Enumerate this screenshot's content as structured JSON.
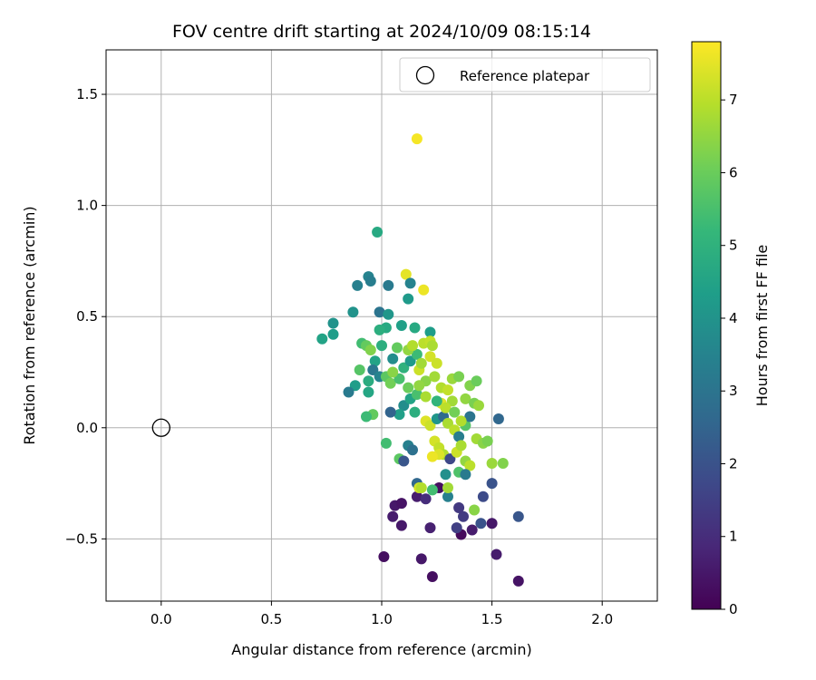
{
  "chart_data": {
    "type": "scatter",
    "title": "FOV centre drift starting at 2024/10/09 08:15:14",
    "xlabel": "Angular distance from reference (arcmin)",
    "ylabel": "Rotation from reference (arcmin)",
    "xlim": [
      -0.25,
      2.25
    ],
    "ylim": [
      -0.78,
      1.7
    ],
    "xticks": [
      0.0,
      0.5,
      1.0,
      1.5,
      2.0
    ],
    "xtick_labels": [
      "0.0",
      "0.5",
      "1.0",
      "1.5",
      "2.0"
    ],
    "yticks": [
      -0.5,
      0.0,
      0.5,
      1.0,
      1.5
    ],
    "ytick_labels": [
      "−0.5",
      "0.0",
      "0.5",
      "1.0",
      "1.5"
    ],
    "grid": true,
    "legend": {
      "position": "top-right",
      "entries": [
        "Reference platepar"
      ]
    },
    "reference_point": {
      "x": 0.0,
      "y": 0.0,
      "marker": "open-circle",
      "color": "#000000"
    },
    "colorbar": {
      "label": "Hours from first FF file",
      "colormap": "viridis",
      "range": [
        0,
        7.8
      ],
      "ticks": [
        0,
        1,
        2,
        3,
        4,
        5,
        6,
        7
      ],
      "tick_labels": [
        "0",
        "1",
        "2",
        "3",
        "4",
        "5",
        "6",
        "7"
      ]
    },
    "series": [
      {
        "name": "drift",
        "points": [
          {
            "x": 1.16,
            "y": 1.3,
            "t": 7.7
          },
          {
            "x": 1.19,
            "y": 0.62,
            "t": 7.6
          },
          {
            "x": 1.11,
            "y": 0.69,
            "t": 7.5
          },
          {
            "x": 1.27,
            "y": 0.11,
            "t": 7.4
          },
          {
            "x": 1.62,
            "y": -0.69,
            "t": 0.4
          },
          {
            "x": 1.23,
            "y": -0.67,
            "t": 0.3
          },
          {
            "x": 1.01,
            "y": -0.58,
            "t": 0.3
          },
          {
            "x": 1.18,
            "y": -0.59,
            "t": 0.5
          },
          {
            "x": 1.52,
            "y": -0.57,
            "t": 0.6
          },
          {
            "x": 1.36,
            "y": -0.48,
            "t": 0.2
          },
          {
            "x": 1.41,
            "y": -0.46,
            "t": 0.6
          },
          {
            "x": 1.5,
            "y": -0.43,
            "t": 0.5
          },
          {
            "x": 1.22,
            "y": -0.45,
            "t": 0.7
          },
          {
            "x": 1.09,
            "y": -0.44,
            "t": 0.5
          },
          {
            "x": 1.05,
            "y": -0.4,
            "t": 0.6
          },
          {
            "x": 1.06,
            "y": -0.35,
            "t": 0.5
          },
          {
            "x": 1.09,
            "y": -0.34,
            "t": 0.4
          },
          {
            "x": 1.16,
            "y": -0.31,
            "t": 0.6
          },
          {
            "x": 1.2,
            "y": -0.32,
            "t": 1.0
          },
          {
            "x": 1.26,
            "y": -0.27,
            "t": 0.3
          },
          {
            "x": 1.34,
            "y": -0.45,
            "t": 1.5
          },
          {
            "x": 1.45,
            "y": -0.43,
            "t": 2.0
          },
          {
            "x": 1.62,
            "y": -0.4,
            "t": 2.1
          },
          {
            "x": 1.37,
            "y": -0.4,
            "t": 1.4
          },
          {
            "x": 1.35,
            "y": -0.36,
            "t": 1.3
          },
          {
            "x": 1.46,
            "y": -0.31,
            "t": 1.8
          },
          {
            "x": 1.5,
            "y": -0.25,
            "t": 2.0
          },
          {
            "x": 1.53,
            "y": 0.04,
            "t": 2.6
          },
          {
            "x": 0.98,
            "y": 0.88,
            "t": 4.7
          },
          {
            "x": 0.94,
            "y": 0.68,
            "t": 3.5
          },
          {
            "x": 0.95,
            "y": 0.66,
            "t": 3.3
          },
          {
            "x": 0.89,
            "y": 0.64,
            "t": 3.4
          },
          {
            "x": 1.03,
            "y": 0.64,
            "t": 3.2
          },
          {
            "x": 1.13,
            "y": 0.65,
            "t": 3.5
          },
          {
            "x": 1.12,
            "y": 0.58,
            "t": 4.2
          },
          {
            "x": 0.87,
            "y": 0.52,
            "t": 4.0
          },
          {
            "x": 0.99,
            "y": 0.52,
            "t": 3.0
          },
          {
            "x": 1.03,
            "y": 0.51,
            "t": 4.1
          },
          {
            "x": 0.78,
            "y": 0.47,
            "t": 4.0
          },
          {
            "x": 0.78,
            "y": 0.42,
            "t": 4.3
          },
          {
            "x": 0.73,
            "y": 0.4,
            "t": 4.5
          },
          {
            "x": 1.02,
            "y": 0.45,
            "t": 4.7
          },
          {
            "x": 0.99,
            "y": 0.44,
            "t": 4.9
          },
          {
            "x": 1.09,
            "y": 0.46,
            "t": 4.4
          },
          {
            "x": 1.15,
            "y": 0.45,
            "t": 4.7
          },
          {
            "x": 1.22,
            "y": 0.43,
            "t": 4.3
          },
          {
            "x": 0.91,
            "y": 0.38,
            "t": 5.4
          },
          {
            "x": 0.93,
            "y": 0.37,
            "t": 5.9
          },
          {
            "x": 0.95,
            "y": 0.35,
            "t": 6.3
          },
          {
            "x": 1.0,
            "y": 0.37,
            "t": 4.9
          },
          {
            "x": 1.05,
            "y": 0.31,
            "t": 3.8
          },
          {
            "x": 0.97,
            "y": 0.3,
            "t": 4.5
          },
          {
            "x": 0.9,
            "y": 0.26,
            "t": 5.7
          },
          {
            "x": 0.96,
            "y": 0.26,
            "t": 3.1
          },
          {
            "x": 0.99,
            "y": 0.23,
            "t": 3.5
          },
          {
            "x": 0.94,
            "y": 0.21,
            "t": 4.8
          },
          {
            "x": 0.88,
            "y": 0.19,
            "t": 4.3
          },
          {
            "x": 0.85,
            "y": 0.16,
            "t": 3.2
          },
          {
            "x": 0.94,
            "y": 0.16,
            "t": 4.6
          },
          {
            "x": 1.02,
            "y": 0.23,
            "t": 5.8
          },
          {
            "x": 1.04,
            "y": 0.2,
            "t": 6.1
          },
          {
            "x": 1.08,
            "y": 0.22,
            "t": 5.5
          },
          {
            "x": 1.1,
            "y": 0.27,
            "t": 5.0
          },
          {
            "x": 1.13,
            "y": 0.3,
            "t": 4.2
          },
          {
            "x": 1.16,
            "y": 0.33,
            "t": 5.3
          },
          {
            "x": 1.12,
            "y": 0.35,
            "t": 6.5
          },
          {
            "x": 1.14,
            "y": 0.37,
            "t": 6.9
          },
          {
            "x": 1.19,
            "y": 0.38,
            "t": 7.0
          },
          {
            "x": 1.22,
            "y": 0.39,
            "t": 7.1
          },
          {
            "x": 1.23,
            "y": 0.37,
            "t": 6.8
          },
          {
            "x": 1.17,
            "y": 0.26,
            "t": 7.2
          },
          {
            "x": 1.2,
            "y": 0.21,
            "t": 6.4
          },
          {
            "x": 1.24,
            "y": 0.23,
            "t": 6.7
          },
          {
            "x": 1.27,
            "y": 0.18,
            "t": 6.9
          },
          {
            "x": 1.3,
            "y": 0.17,
            "t": 7.1
          },
          {
            "x": 1.32,
            "y": 0.22,
            "t": 6.6
          },
          {
            "x": 1.35,
            "y": 0.23,
            "t": 6.2
          },
          {
            "x": 1.4,
            "y": 0.19,
            "t": 6.3
          },
          {
            "x": 1.43,
            "y": 0.21,
            "t": 6.0
          },
          {
            "x": 1.38,
            "y": 0.13,
            "t": 6.5
          },
          {
            "x": 1.42,
            "y": 0.11,
            "t": 6.2
          },
          {
            "x": 1.44,
            "y": 0.1,
            "t": 6.6
          },
          {
            "x": 1.1,
            "y": 0.1,
            "t": 3.8
          },
          {
            "x": 1.13,
            "y": 0.13,
            "t": 4.5
          },
          {
            "x": 1.16,
            "y": 0.15,
            "t": 5.5
          },
          {
            "x": 1.15,
            "y": 0.07,
            "t": 4.9
          },
          {
            "x": 1.08,
            "y": 0.06,
            "t": 4.4
          },
          {
            "x": 1.04,
            "y": 0.07,
            "t": 2.5
          },
          {
            "x": 0.96,
            "y": 0.06,
            "t": 5.9
          },
          {
            "x": 0.93,
            "y": 0.05,
            "t": 5.3
          },
          {
            "x": 1.02,
            "y": -0.07,
            "t": 5.4
          },
          {
            "x": 1.08,
            "y": -0.14,
            "t": 5.8
          },
          {
            "x": 1.1,
            "y": -0.15,
            "t": 2.1
          },
          {
            "x": 1.12,
            "y": -0.08,
            "t": 3.4
          },
          {
            "x": 1.14,
            "y": -0.1,
            "t": 2.9
          },
          {
            "x": 1.16,
            "y": -0.25,
            "t": 2.6
          },
          {
            "x": 1.17,
            "y": -0.27,
            "t": 7.3
          },
          {
            "x": 1.23,
            "y": -0.28,
            "t": 5.4
          },
          {
            "x": 1.3,
            "y": -0.31,
            "t": 3.4
          },
          {
            "x": 1.3,
            "y": -0.27,
            "t": 6.7
          },
          {
            "x": 1.2,
            "y": 0.03,
            "t": 7.4
          },
          {
            "x": 1.22,
            "y": 0.01,
            "t": 7.2
          },
          {
            "x": 1.25,
            "y": 0.04,
            "t": 4.1
          },
          {
            "x": 1.28,
            "y": 0.05,
            "t": 2.7
          },
          {
            "x": 1.3,
            "y": 0.02,
            "t": 6.8
          },
          {
            "x": 1.33,
            "y": -0.01,
            "t": 7.0
          },
          {
            "x": 1.35,
            "y": -0.04,
            "t": 3.3
          },
          {
            "x": 1.38,
            "y": 0.01,
            "t": 5.7
          },
          {
            "x": 1.24,
            "y": -0.06,
            "t": 7.3
          },
          {
            "x": 1.26,
            "y": -0.09,
            "t": 7.1
          },
          {
            "x": 1.28,
            "y": -0.12,
            "t": 6.9
          },
          {
            "x": 1.31,
            "y": -0.14,
            "t": 1.7
          },
          {
            "x": 1.34,
            "y": -0.11,
            "t": 7.2
          },
          {
            "x": 1.36,
            "y": -0.08,
            "t": 6.8
          },
          {
            "x": 1.38,
            "y": -0.15,
            "t": 6.5
          },
          {
            "x": 1.4,
            "y": -0.17,
            "t": 7.0
          },
          {
            "x": 1.43,
            "y": -0.05,
            "t": 6.7
          },
          {
            "x": 1.46,
            "y": -0.07,
            "t": 6.4
          },
          {
            "x": 1.48,
            "y": -0.06,
            "t": 6.2
          },
          {
            "x": 1.5,
            "y": -0.16,
            "t": 6.6
          },
          {
            "x": 1.55,
            "y": -0.16,
            "t": 6.3
          },
          {
            "x": 1.35,
            "y": -0.2,
            "t": 5.6
          },
          {
            "x": 1.38,
            "y": -0.21,
            "t": 3.2
          },
          {
            "x": 1.42,
            "y": -0.37,
            "t": 6.4
          },
          {
            "x": 1.26,
            "y": -0.12,
            "t": 7.4
          },
          {
            "x": 1.23,
            "y": -0.13,
            "t": 7.6
          },
          {
            "x": 1.29,
            "y": -0.21,
            "t": 3.9
          },
          {
            "x": 1.18,
            "y": -0.27,
            "t": 6.9
          },
          {
            "x": 1.22,
            "y": 0.32,
            "t": 7.3
          },
          {
            "x": 1.25,
            "y": 0.29,
            "t": 7.2
          },
          {
            "x": 1.18,
            "y": 0.29,
            "t": 6.7
          },
          {
            "x": 1.07,
            "y": 0.36,
            "t": 5.9
          },
          {
            "x": 1.05,
            "y": 0.25,
            "t": 6.4
          },
          {
            "x": 1.12,
            "y": 0.18,
            "t": 6.0
          },
          {
            "x": 1.17,
            "y": 0.19,
            "t": 6.5
          },
          {
            "x": 1.2,
            "y": 0.14,
            "t": 6.8
          },
          {
            "x": 1.25,
            "y": 0.12,
            "t": 5.1
          },
          {
            "x": 1.32,
            "y": 0.12,
            "t": 6.7
          },
          {
            "x": 1.29,
            "y": 0.09,
            "t": 7.0
          },
          {
            "x": 1.33,
            "y": 0.07,
            "t": 6.1
          },
          {
            "x": 1.4,
            "y": 0.05,
            "t": 3.0
          },
          {
            "x": 1.36,
            "y": 0.03,
            "t": 6.9
          }
        ]
      }
    ]
  }
}
